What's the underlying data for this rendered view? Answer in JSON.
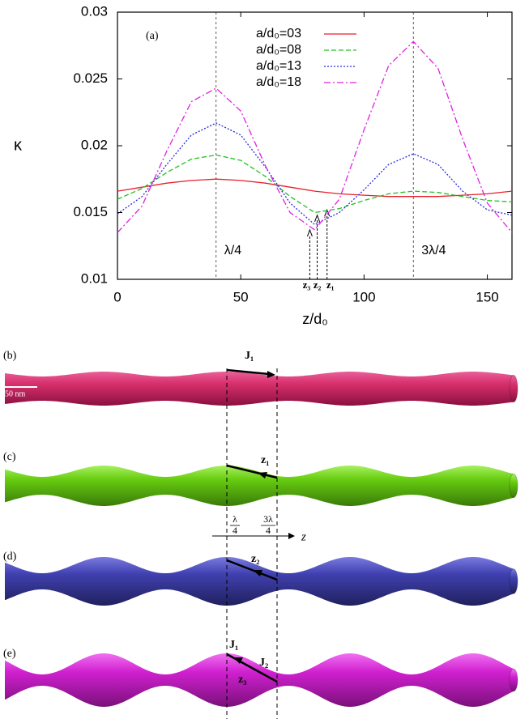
{
  "chart_data": {
    "type": "line",
    "title_annotation": "(a)",
    "x_label": "z/d₀",
    "y_label": "κ",
    "x": [
      0,
      10,
      20,
      30,
      40,
      50,
      60,
      70,
      80,
      90,
      100,
      110,
      120,
      130,
      140,
      150,
      160
    ],
    "series": [
      {
        "name": "a/d₀=03",
        "color": "#e8202a",
        "line_style": "solid",
        "values": [
          0.0166,
          0.0169,
          0.0172,
          0.0174,
          0.0175,
          0.0174,
          0.0172,
          0.0169,
          0.0166,
          0.0164,
          0.0163,
          0.0162,
          0.0162,
          0.0162,
          0.0163,
          0.0164,
          0.0166
        ]
      },
      {
        "name": "a/d₀=08",
        "color": "#22c022",
        "line_style": "dashed",
        "values": [
          0.016,
          0.0168,
          0.018,
          0.019,
          0.0193,
          0.0189,
          0.0177,
          0.0162,
          0.015,
          0.0153,
          0.0159,
          0.0164,
          0.0166,
          0.0165,
          0.0162,
          0.0159,
          0.0158
        ]
      },
      {
        "name": "a/d₀=13",
        "color": "#2a2ae0",
        "line_style": "dotted",
        "values": [
          0.0149,
          0.0162,
          0.0186,
          0.0208,
          0.0217,
          0.0208,
          0.0184,
          0.0157,
          0.0141,
          0.015,
          0.0167,
          0.0186,
          0.0194,
          0.0186,
          0.0166,
          0.0152,
          0.0148
        ]
      },
      {
        "name": "a/d₀=18",
        "color": "#e020e0",
        "line_style": "dashdot",
        "values": [
          0.0135,
          0.0155,
          0.0196,
          0.0233,
          0.0243,
          0.0226,
          0.0185,
          0.015,
          0.0137,
          0.016,
          0.0212,
          0.026,
          0.0278,
          0.0258,
          0.0205,
          0.0157,
          0.0135
        ]
      }
    ],
    "xlim": [
      0,
      160
    ],
    "xticks": [
      0,
      50,
      100,
      150
    ],
    "ylim": [
      0.01,
      0.03
    ],
    "yticks": [
      0.01,
      0.015,
      0.02,
      0.025,
      0.03
    ],
    "vlines": [
      {
        "x": 40,
        "label": "λ/4"
      },
      {
        "x": 120,
        "label": "3λ/4"
      }
    ],
    "markers": [
      {
        "label": "z₃",
        "x": 78,
        "y": 0.0137
      },
      {
        "label": "z₂",
        "x": 81,
        "y": 0.0148
      },
      {
        "label": "z₁",
        "x": 85,
        "y": 0.0152
      }
    ],
    "legend": "top-center"
  },
  "panels": [
    {
      "label": "(b)",
      "scale": "50 nm",
      "texts": [
        "J₁"
      ]
    },
    {
      "label": "(c)",
      "texts": [
        "z₁"
      ]
    },
    {
      "label": "(d)",
      "texts": [
        "z₂"
      ]
    },
    {
      "label": "(e)",
      "texts": [
        "J₁",
        "J₂",
        "z₃"
      ]
    }
  ],
  "z_axis": {
    "ticks": [
      {
        "num": "λ",
        "den": "4"
      },
      {
        "num": "3λ",
        "den": "4"
      }
    ],
    "label": "z"
  }
}
